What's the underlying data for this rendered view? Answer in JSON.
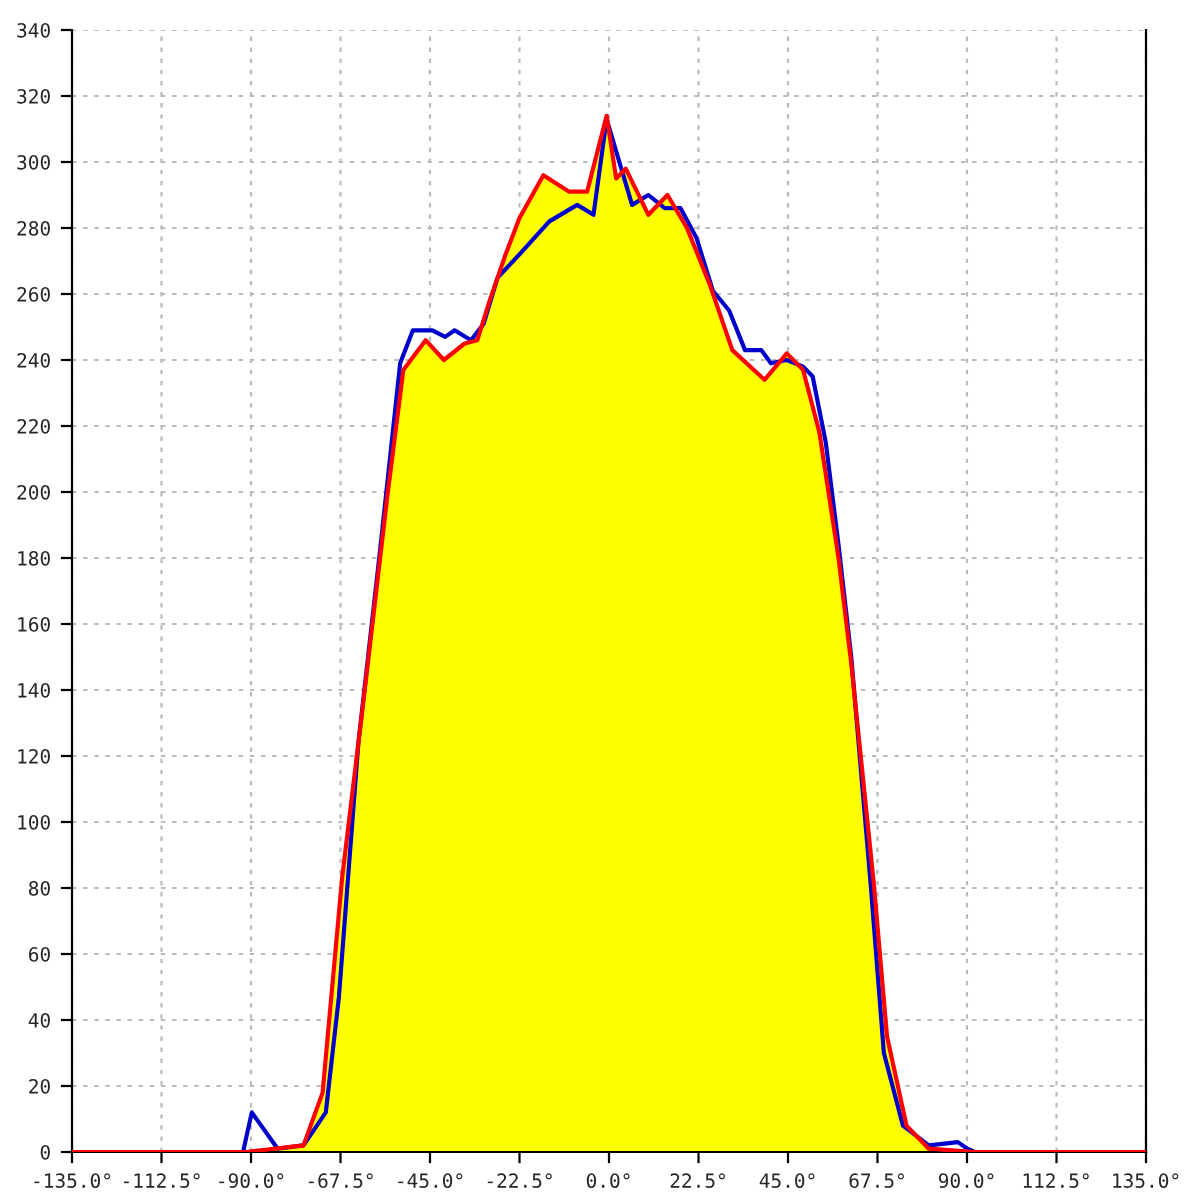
{
  "chart_data": {
    "type": "line",
    "xlim": [
      -135,
      135
    ],
    "ylim": [
      0,
      340
    ],
    "xticks": [
      {
        "value": -135,
        "label": "-135.0°"
      },
      {
        "value": -112.5,
        "label": "-112.5°"
      },
      {
        "value": -90,
        "label": "-90.0°"
      },
      {
        "value": -67.5,
        "label": "-67.5°"
      },
      {
        "value": -45,
        "label": "-45.0°"
      },
      {
        "value": -22.5,
        "label": "-22.5°"
      },
      {
        "value": 0,
        "label": "0.0°"
      },
      {
        "value": 22.5,
        "label": "22.5°"
      },
      {
        "value": 45,
        "label": "45.0°"
      },
      {
        "value": 67.5,
        "label": "67.5°"
      },
      {
        "value": 90,
        "label": "90.0°"
      },
      {
        "value": 112.5,
        "label": "112.5°"
      },
      {
        "value": 135,
        "label": "135.0°"
      }
    ],
    "yticks": [
      0,
      20,
      40,
      60,
      80,
      100,
      120,
      140,
      160,
      180,
      200,
      220,
      240,
      260,
      280,
      300,
      320,
      340
    ],
    "grid": true,
    "line_style": "solid",
    "series": [
      {
        "type": "area",
        "color": "#ffff00",
        "x": [
          -91.4,
          -76.8,
          -72,
          -67.1,
          -61.4,
          -55.8,
          -51.7,
          -46.1,
          -41.5,
          -36.3,
          -33.1,
          -30,
          -26,
          -22.5,
          -16.5,
          -10,
          -5.5,
          -0.6,
          1.8,
          4.2,
          9.9,
          14.7,
          19.6,
          25.3,
          31,
          39.1,
          44.7,
          48.8,
          52.9,
          57.7,
          60.9,
          66.6,
          69.9,
          74.8,
          80.4,
          92
        ],
        "values": [
          0,
          2,
          18,
          83,
          140,
          198,
          237,
          246,
          240,
          245,
          246,
          258,
          272,
          283,
          296,
          291,
          291,
          314,
          295,
          298,
          284,
          290,
          280,
          263,
          243,
          234,
          242,
          237,
          218,
          180,
          148,
          81,
          35,
          8,
          1,
          0
        ]
      },
      {
        "color": "#0000cc",
        "x": [
          -92,
          -89.8,
          -83.3,
          -76.8,
          -71.2,
          -67.9,
          -63,
          -57.4,
          -52.5,
          -49.3,
          -44.4,
          -41.2,
          -38.8,
          -34.7,
          -31.5,
          -28,
          -22.5,
          -15,
          -8,
          -3.9,
          -0.6,
          5.8,
          9.9,
          14,
          18,
          22,
          26.1,
          30.2,
          34.2,
          38.3,
          40.7,
          44.7,
          48.8,
          51.2,
          54.5,
          57.7,
          60.9,
          65.8,
          69.1,
          73.9,
          80.4,
          87.7,
          90.1,
          92
        ],
        "values": [
          0,
          12,
          1,
          2,
          12,
          47,
          124,
          184,
          239,
          249,
          249,
          247,
          249,
          246,
          251,
          265,
          272,
          282,
          287,
          284,
          313,
          287,
          290,
          286,
          286,
          277,
          261,
          255,
          243,
          243,
          239,
          240,
          238,
          235,
          215,
          184,
          150,
          81,
          30,
          8,
          2,
          3,
          1,
          0
        ]
      },
      {
        "color": "#ff0000",
        "x": [
          -135,
          -91.4,
          -76.8,
          -72,
          -67.1,
          -61.4,
          -55.8,
          -51.7,
          -46.1,
          -41.5,
          -36.3,
          -33.1,
          -30,
          -26,
          -22.5,
          -16.5,
          -10,
          -5.5,
          -0.6,
          1.8,
          4.2,
          9.9,
          14.7,
          19.6,
          25.3,
          31,
          39.1,
          44.7,
          48.8,
          52.9,
          57.7,
          60.9,
          66.6,
          69.9,
          74.8,
          80.4,
          92,
          135
        ],
        "values": [
          0,
          0,
          2,
          18,
          83,
          140,
          198,
          237,
          246,
          240,
          245,
          246,
          258,
          272,
          283,
          296,
          291,
          291,
          314,
          295,
          298,
          284,
          290,
          280,
          263,
          243,
          234,
          242,
          237,
          218,
          180,
          148,
          81,
          35,
          8,
          1,
          0,
          0
        ]
      }
    ]
  }
}
